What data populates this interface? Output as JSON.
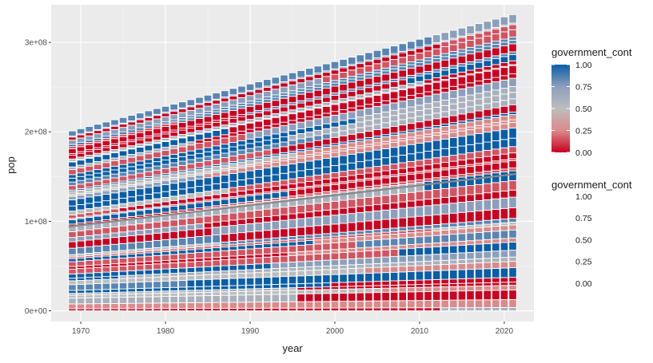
{
  "chart_data": {
    "type": "bar",
    "subtype": "stacked",
    "title": "",
    "xlabel": "year",
    "ylabel": "pop",
    "x_start": 1969,
    "x_end": 2021,
    "xlim": [
      1966.5,
      2023.5
    ],
    "ylim": [
      -12000000,
      342000000
    ],
    "x_ticks": [
      1970,
      1980,
      1990,
      2000,
      2010,
      2020
    ],
    "x_tick_labels": [
      "1970",
      "1980",
      "1990",
      "2000",
      "2010",
      "2020"
    ],
    "y_ticks": [
      0,
      100000000,
      200000000,
      300000000
    ],
    "y_tick_labels": [
      "0e+00",
      "1e+08",
      "2e+08",
      "3e+08"
    ],
    "total_by_year": {
      "start": 201000000,
      "end": 331000000
    },
    "segments_per_bar": 50,
    "highlight_band": {
      "description": "grey band",
      "start": 94000000,
      "end": 153000000
    },
    "fill_variable": "government_cont",
    "fill_scale": {
      "low_color": "#ca0020",
      "mid_color": "#bdbdbd",
      "high_color": "#0a5ea8",
      "breaks": [
        1.0,
        0.75,
        0.5,
        0.25,
        0.0
      ],
      "labels": [
        "1.00",
        "0.75",
        "0.50",
        "0.25",
        "0.00"
      ]
    },
    "grid": true,
    "legend_position": "right",
    "legends": [
      {
        "title": "government_cont",
        "kind": "colorbar",
        "labels": [
          "1.00",
          "0.75",
          "0.50",
          "0.25",
          "0.00"
        ]
      },
      {
        "title": "government_cont",
        "kind": "labels",
        "labels": [
          "1.00",
          "0.75",
          "0.50",
          "0.25",
          "0.00"
        ]
      }
    ]
  }
}
